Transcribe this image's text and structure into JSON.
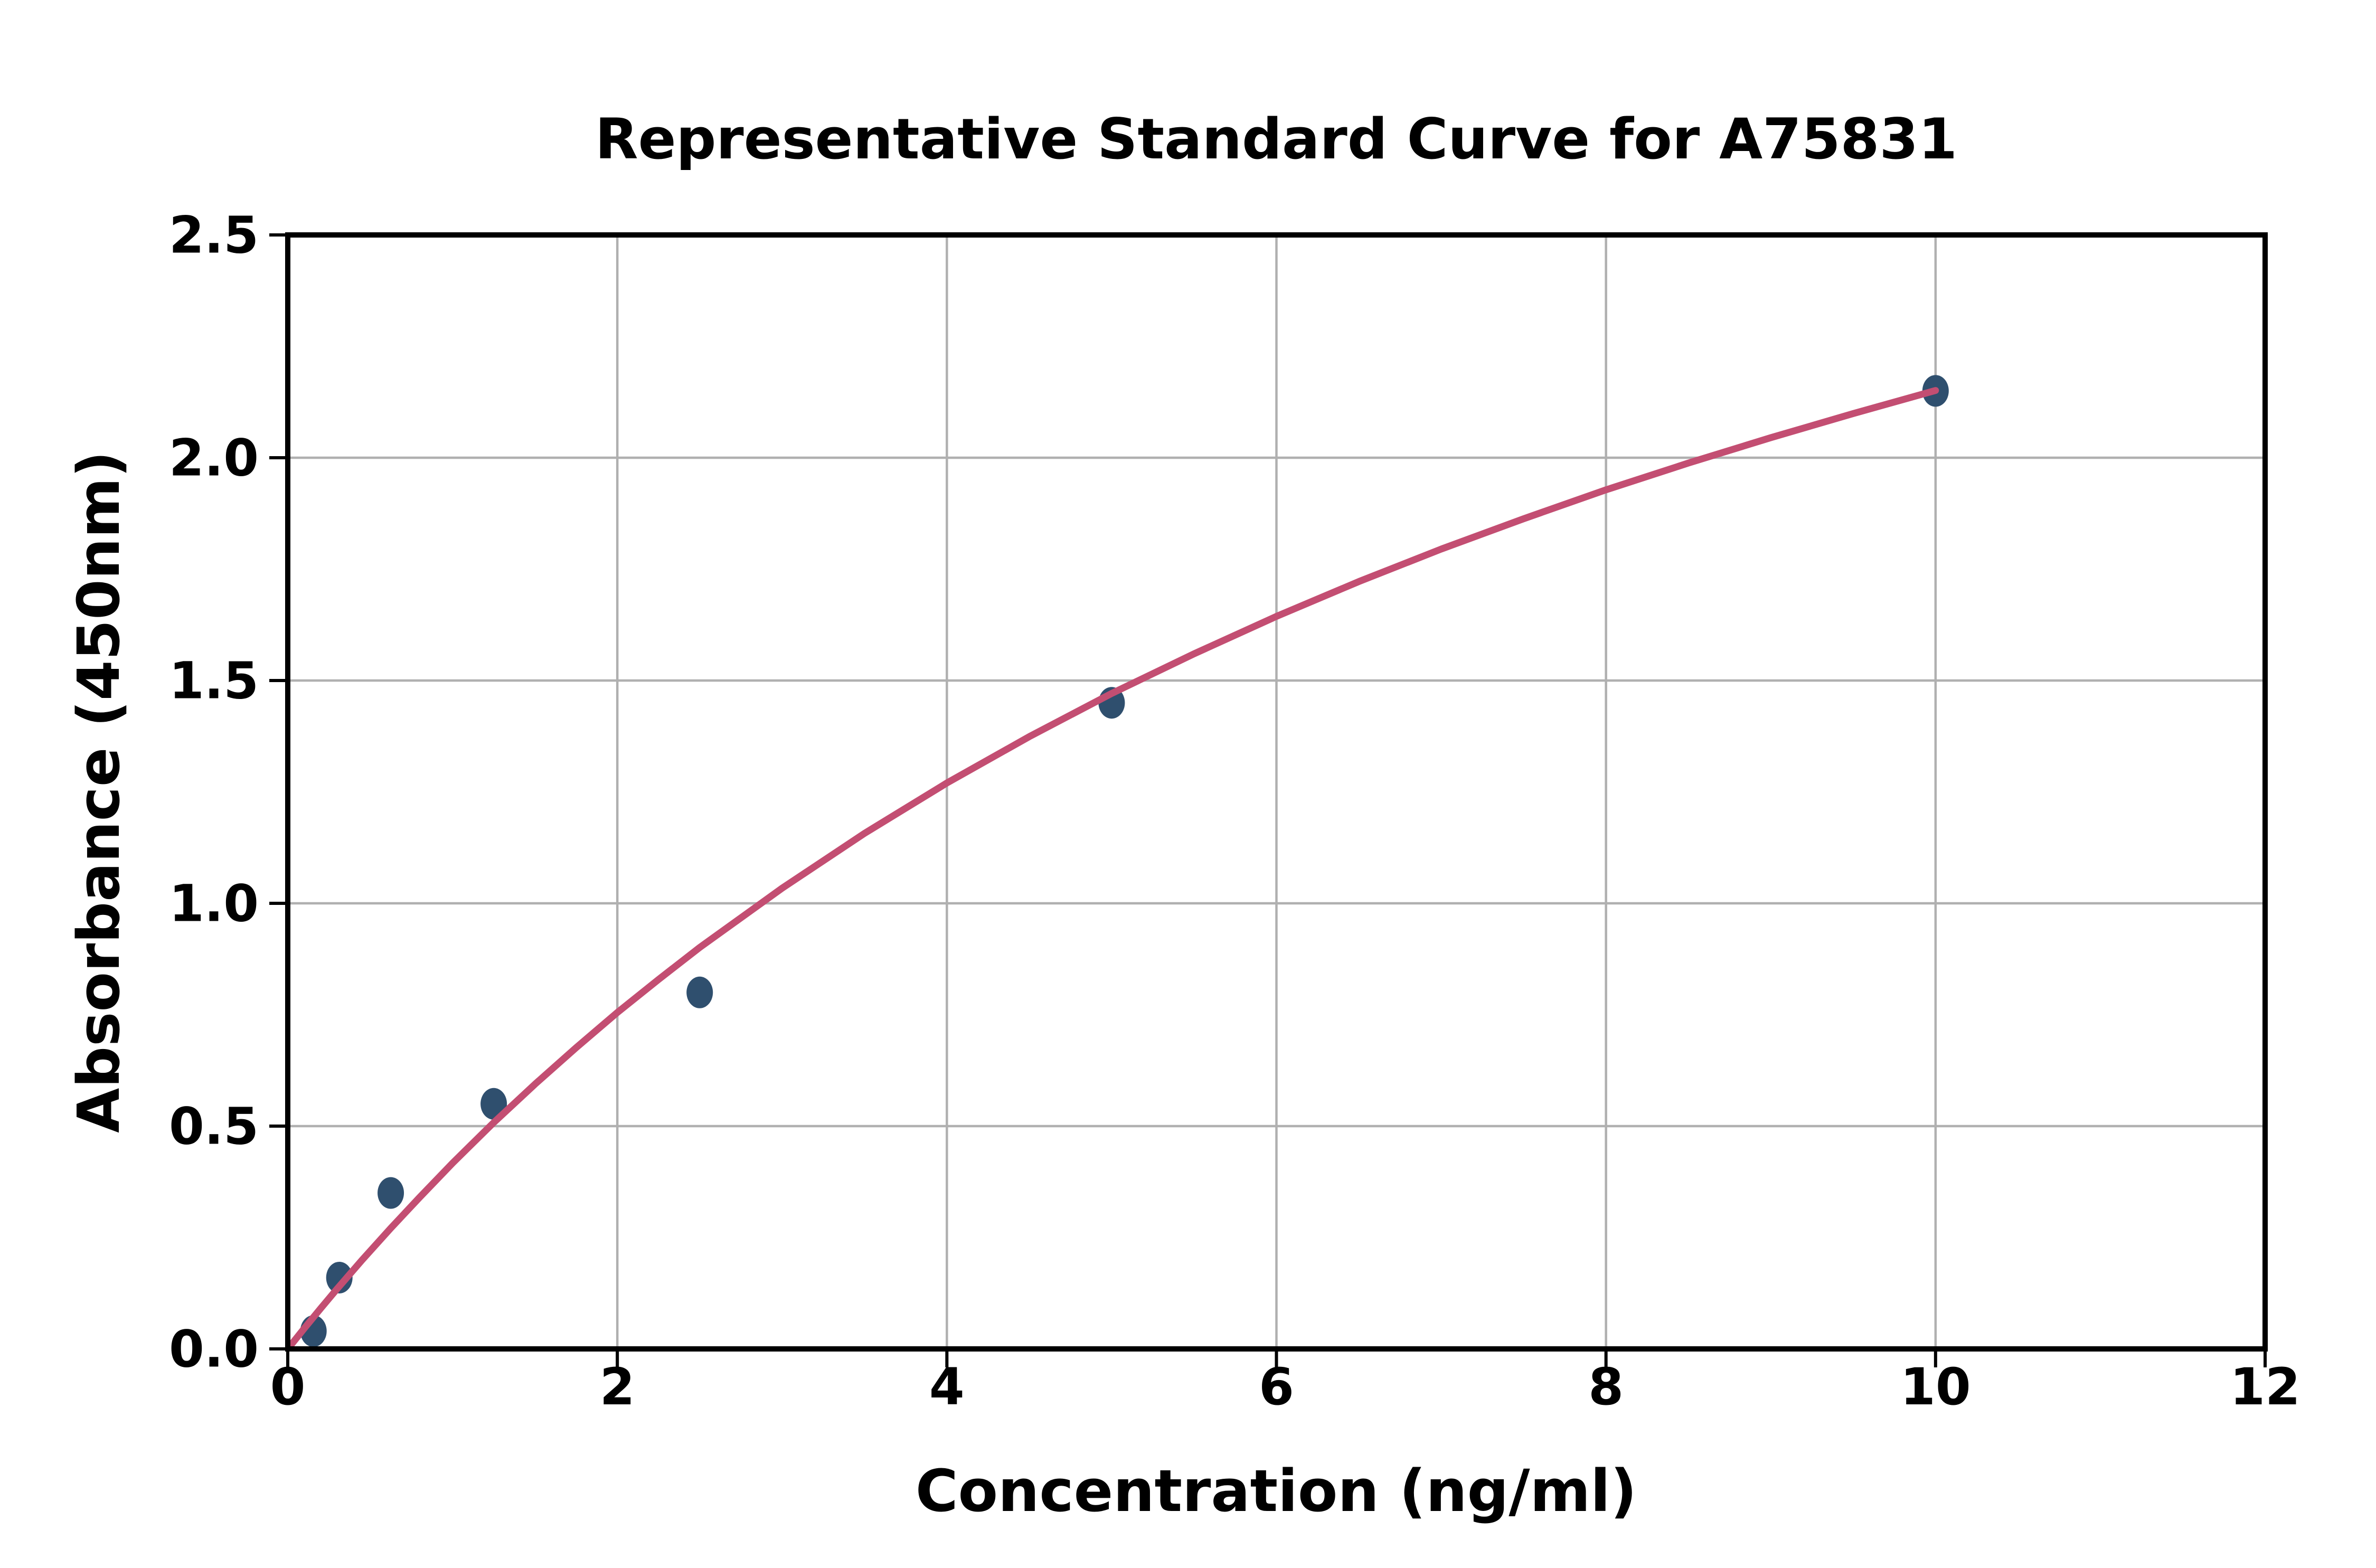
{
  "figure": {
    "background": "#ffffff"
  },
  "chart_data": {
    "type": "scatter",
    "title": "Representative Standard Curve for A75831",
    "xlabel": "Concentration (ng/ml)",
    "ylabel": "Absorbance (450nm)",
    "xlim": [
      0,
      12
    ],
    "ylim": [
      0,
      2.5
    ],
    "grid": true,
    "legend_position": "none",
    "xticks": {
      "values": [
        0,
        2,
        4,
        6,
        8,
        10,
        12
      ],
      "labels": [
        "0",
        "2",
        "4",
        "6",
        "8",
        "10",
        "12"
      ]
    },
    "yticks": {
      "values": [
        0,
        0.5,
        1.0,
        1.5,
        2.0,
        2.5
      ],
      "labels": [
        "0.0",
        "0.5",
        "1.0",
        "1.5",
        "2.0",
        "2.5"
      ]
    },
    "series": [
      {
        "name": "standard-points",
        "type": "scatter",
        "color": "#2F4F6E",
        "marker": {
          "shape": "ellipse",
          "rx": 25,
          "ry": 30
        },
        "x": [
          0.156,
          0.313,
          0.625,
          1.25,
          2.5,
          5,
          10
        ],
        "y": [
          0.04,
          0.16,
          0.35,
          0.55,
          0.8,
          1.45,
          2.15
        ]
      },
      {
        "name": "fitted-curve",
        "type": "line",
        "color": "#C34E72",
        "stroke_width": 13,
        "points": [
          [
            0.02,
            0.009
          ],
          [
            0.1,
            0.046
          ],
          [
            0.2,
            0.091
          ],
          [
            0.3,
            0.135
          ],
          [
            0.45,
            0.199
          ],
          [
            0.625,
            0.271
          ],
          [
            0.8,
            0.34
          ],
          [
            1.0,
            0.417
          ],
          [
            1.25,
            0.508
          ],
          [
            1.5,
            0.594
          ],
          [
            1.75,
            0.676
          ],
          [
            2.0,
            0.755
          ],
          [
            2.25,
            0.829
          ],
          [
            2.5,
            0.901
          ],
          [
            3.0,
            1.034
          ],
          [
            3.5,
            1.157
          ],
          [
            4.0,
            1.27
          ],
          [
            4.5,
            1.374
          ],
          [
            5.0,
            1.471
          ],
          [
            5.5,
            1.56
          ],
          [
            6.0,
            1.644
          ],
          [
            6.5,
            1.722
          ],
          [
            7.0,
            1.795
          ],
          [
            7.5,
            1.863
          ],
          [
            8.0,
            1.928
          ],
          [
            8.5,
            1.988
          ],
          [
            9.0,
            2.045
          ],
          [
            9.5,
            2.099
          ],
          [
            10.0,
            2.151
          ]
        ]
      }
    ],
    "style": {
      "grid_color": "#B0B0B0",
      "grid_width": 4.5,
      "spine_color": "#000000",
      "spine_width": 10,
      "tick_color": "#000000",
      "tick_length": 35,
      "tick_width": 6
    }
  }
}
